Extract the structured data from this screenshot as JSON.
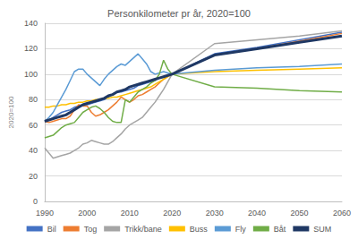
{
  "chart_data": {
    "type": "line",
    "title": "Personkilometer pr år, 2020=100",
    "y_label": "2020=100",
    "x": [
      1990,
      1991,
      1992,
      1993,
      1994,
      1995,
      1996,
      1997,
      1998,
      1999,
      2000,
      2001,
      2002,
      2003,
      2004,
      2005,
      2006,
      2007,
      2008,
      2009,
      2010,
      2011,
      2012,
      2013,
      2014,
      2015,
      2016,
      2017,
      2018,
      2019,
      2020,
      2030,
      2040,
      2050,
      2060
    ],
    "series": [
      {
        "name": "Bil",
        "color": "#4472C4",
        "line_style": "solid",
        "values": [
          63,
          64,
          66,
          68,
          70,
          71,
          72,
          74,
          75,
          76,
          76,
          77,
          78,
          79,
          80,
          82,
          84,
          86,
          86,
          87,
          88,
          89,
          91,
          92,
          93,
          94,
          95,
          97,
          98,
          99,
          100,
          116,
          121,
          127,
          133
        ]
      },
      {
        "name": "Tog",
        "color": "#ED7D31",
        "line_style": "solid",
        "values": [
          63,
          62,
          63,
          64,
          65,
          65,
          67,
          72,
          76,
          75,
          75,
          70,
          67,
          68,
          70,
          72,
          75,
          78,
          82,
          80,
          78,
          80,
          83,
          84,
          86,
          88,
          90,
          93,
          96,
          98,
          100,
          115,
          120,
          126,
          132
        ]
      },
      {
        "name": "Trikk/bane",
        "color": "#A5A5A5",
        "line_style": "solid",
        "values": [
          42,
          38,
          34,
          35,
          36,
          37,
          38,
          40,
          42,
          45,
          46,
          48,
          47,
          46,
          45,
          45,
          47,
          50,
          53,
          57,
          60,
          62,
          64,
          66,
          70,
          74,
          78,
          83,
          88,
          94,
          100,
          124,
          127,
          130,
          134
        ]
      },
      {
        "name": "Buss",
        "color": "#FFC000",
        "line_style": "solid",
        "values": [
          74,
          74,
          75,
          75,
          76,
          76,
          77,
          77,
          78,
          78,
          79,
          79,
          80,
          80,
          81,
          81,
          82,
          82,
          83,
          84,
          85,
          86,
          87,
          88,
          89,
          90,
          92,
          94,
          96,
          98,
          100,
          102,
          103,
          104,
          105
        ]
      },
      {
        "name": "Fly",
        "color": "#5B9BD5",
        "line_style": "solid",
        "values": [
          63,
          66,
          70,
          76,
          82,
          88,
          95,
          102,
          104,
          104,
          100,
          97,
          94,
          91,
          96,
          100,
          103,
          106,
          108,
          107,
          110,
          113,
          116,
          112,
          108,
          102,
          100,
          101,
          102,
          101,
          100,
          103,
          105,
          106,
          108
        ]
      },
      {
        "name": "Båt",
        "color": "#70AD47",
        "line_style": "solid",
        "values": [
          50,
          51,
          52,
          55,
          58,
          60,
          61,
          62,
          66,
          70,
          72,
          74,
          75,
          73,
          70,
          66,
          63,
          62,
          62,
          80,
          78,
          82,
          86,
          88,
          90,
          93,
          95,
          100,
          111,
          104,
          100,
          90,
          89,
          87,
          86
        ]
      },
      {
        "name": "SUM",
        "color": "#1F3864",
        "line_style": "thick",
        "values": [
          63,
          64,
          65,
          66,
          67,
          68,
          70,
          72,
          74,
          76,
          77,
          78,
          79,
          80,
          81,
          83,
          84,
          86,
          87,
          88,
          90,
          91,
          92,
          93,
          94,
          95,
          96,
          97,
          98,
          99,
          100,
          115,
          120,
          125,
          130
        ]
      }
    ],
    "xlim": [
      1990,
      2060
    ],
    "xticks": [
      1990,
      2000,
      2010,
      2020,
      2030,
      2040,
      2050,
      2060
    ],
    "ylim": [
      0,
      140
    ],
    "yticks": [
      0,
      20,
      40,
      60,
      80,
      100,
      120,
      140
    ],
    "grid": true,
    "legend": "bottom"
  }
}
